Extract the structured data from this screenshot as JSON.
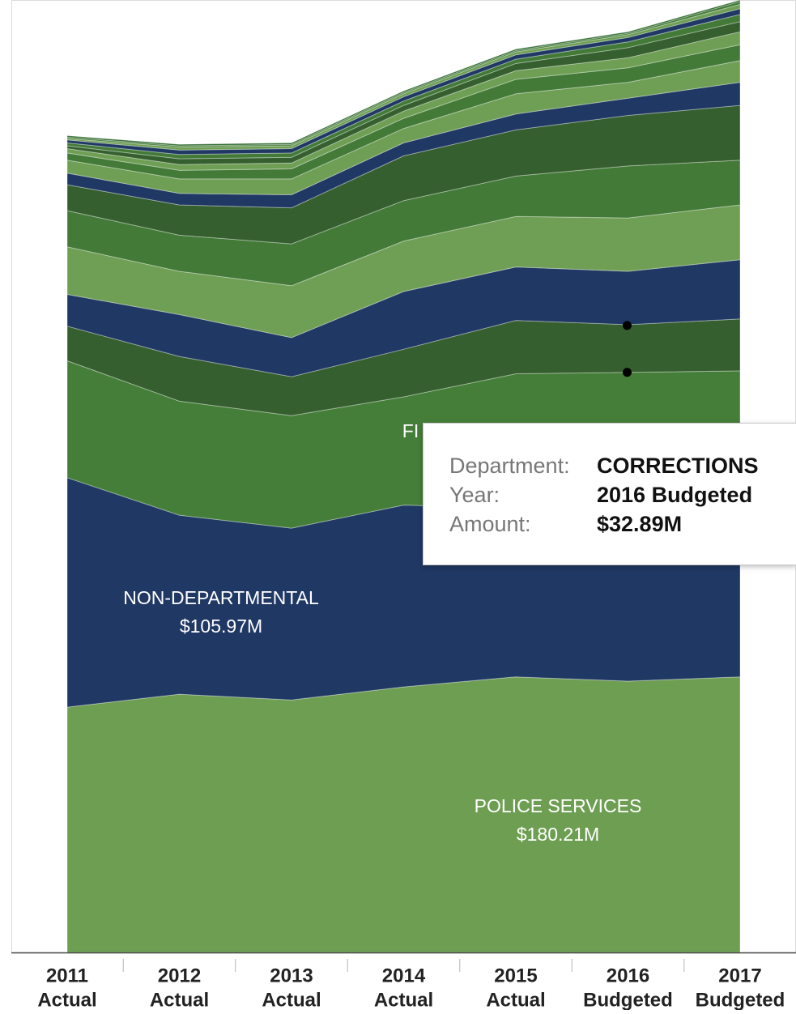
{
  "chart_data": {
    "type": "area",
    "stacked": true,
    "x": [
      "2011 Actual",
      "2012 Actual",
      "2013 Actual",
      "2014 Actual",
      "2015 Actual",
      "2016 Budgeted",
      "2017 Budgeted"
    ],
    "x_tick_labels": [
      [
        "2011",
        "Actual"
      ],
      [
        "2012",
        "Actual"
      ],
      [
        "2013",
        "Actual"
      ],
      [
        "2014",
        "Actual"
      ],
      [
        "2015",
        "Actual"
      ],
      [
        "2016",
        "Budgeted"
      ],
      [
        "2017",
        "Budgeted"
      ]
    ],
    "series": [
      {
        "name": "POLICE SERVICES",
        "color": "#6e9e52",
        "values": [
          170,
          179,
          175,
          184,
          191,
          188,
          191
        ]
      },
      {
        "name": "NON-DEPARTMENTAL",
        "color": "#203864",
        "values": [
          159,
          124,
          119,
          126,
          117,
          120,
          118
        ]
      },
      {
        "name": "FIRE SERVICES",
        "color": "#447e38",
        "values": [
          81,
          79,
          78,
          75,
          93,
          94,
          94
        ]
      },
      {
        "name": "CORRECTIONS",
        "color": "#365f2f",
        "values": [
          24,
          31,
          27,
          33,
          37,
          33,
          36
        ]
      },
      {
        "name": "",
        "color": "#203864",
        "values": [
          22,
          29,
          27,
          40,
          37,
          37,
          41
        ]
      },
      {
        "name": "",
        "color": "#6f9f55",
        "values": [
          33,
          30,
          36,
          35,
          35,
          37,
          38
        ]
      },
      {
        "name": "",
        "color": "#437a38",
        "values": [
          25,
          25,
          29,
          28,
          28,
          36,
          31
        ]
      },
      {
        "name": "",
        "color": "#365f2f",
        "values": [
          18,
          21,
          25,
          31,
          32,
          35,
          38
        ]
      },
      {
        "name": "",
        "color": "#203864",
        "values": [
          8,
          8,
          9,
          9,
          11,
          12,
          16
        ]
      },
      {
        "name": "",
        "color": "#6f9f55",
        "values": [
          9,
          10,
          11,
          10,
          14,
          11,
          15
        ]
      },
      {
        "name": "",
        "color": "#437a38",
        "values": [
          5,
          6,
          7,
          7,
          10,
          10,
          11
        ]
      },
      {
        "name": "",
        "color": "#6f9f55",
        "values": [
          3,
          4,
          4,
          5,
          6,
          7,
          9
        ]
      },
      {
        "name": "",
        "color": "#365f2f",
        "values": [
          2,
          4,
          4,
          4,
          5,
          7,
          7
        ]
      },
      {
        "name": "",
        "color": "#437a38",
        "values": [
          2,
          3,
          3,
          3,
          3,
          4,
          5
        ]
      },
      {
        "name": "",
        "color": "#203864",
        "values": [
          2,
          3,
          3,
          3,
          3,
          3,
          4
        ]
      },
      {
        "name": "",
        "color": "#6f9f55",
        "values": [
          1,
          2,
          2,
          2,
          2,
          2,
          3
        ]
      },
      {
        "name": "",
        "color": "#437a38",
        "values": [
          1,
          1,
          1,
          1,
          1,
          1,
          2
        ]
      },
      {
        "name": "",
        "color": "#2d6a2d",
        "values": [
          1,
          1,
          1,
          1,
          1,
          1,
          1
        ]
      }
    ],
    "ylim": [
      0,
      660
    ],
    "grid": false,
    "legend": "none",
    "annotations": [
      {
        "series": "NON-DEPARTMENTAL",
        "lines": [
          "NON-DEPARTMENTAL",
          "$105.97M"
        ]
      },
      {
        "series": "POLICE SERVICES",
        "lines": [
          "POLICE SERVICES",
          "$180.21M"
        ]
      },
      {
        "series": "FIRE SERVICES",
        "lines": [
          "FI"
        ]
      }
    ],
    "highlight": {
      "series": "CORRECTIONS",
      "x": "2016 Budgeted"
    },
    "tooltip": {
      "rows": [
        {
          "label": "Department:",
          "value": "CORRECTIONS"
        },
        {
          "label": "Year:",
          "value": "2016 Budgeted"
        },
        {
          "label": "Amount:",
          "value": "$32.89M"
        }
      ]
    }
  }
}
